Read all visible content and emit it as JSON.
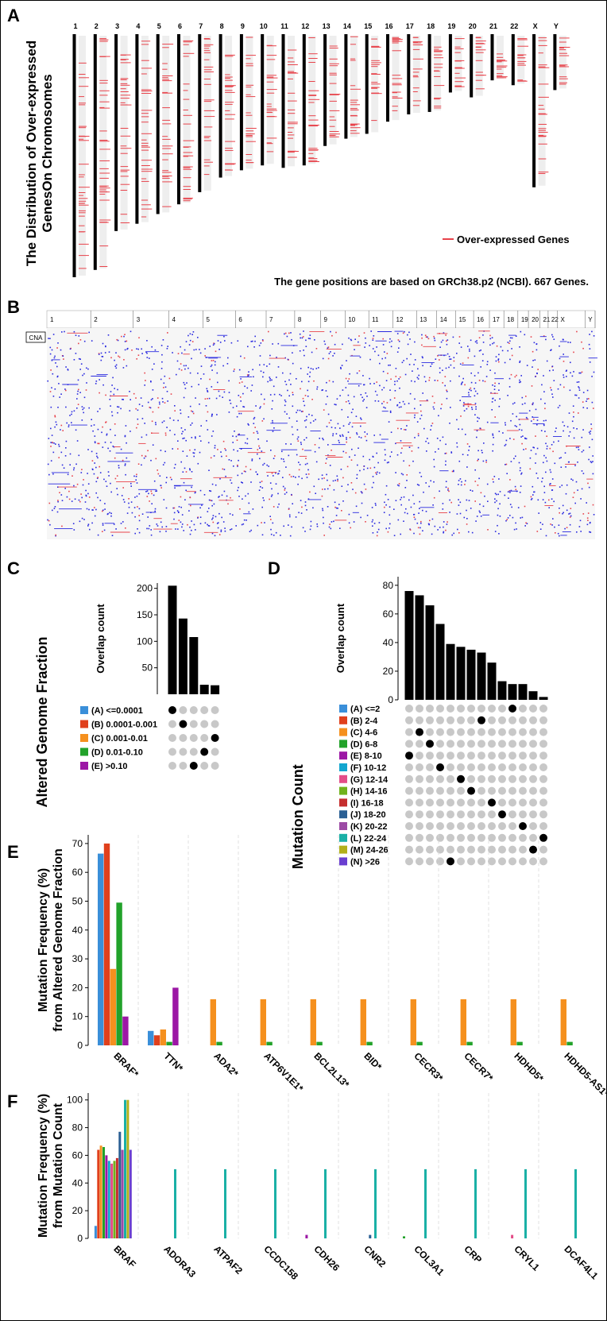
{
  "colors": {
    "red_mark": "#e8434b",
    "blue_mark": "#2a2ae0",
    "dot_grey": "#c8c8c8",
    "dot_black": "#000000",
    "grid": "#d9d9d9"
  },
  "panelA": {
    "letter": "A",
    "ylabel": "The Distribution of Over-expressed GenesOn Chromosomes",
    "ylabel_line1": "The Distribution of Over-expressed",
    "ylabel_line2": "GenesOn Chromosomes",
    "legend": "Over-expressed Genes",
    "note": "The gene positions are based on GRCh38.p2 (NCBI). 667 Genes.",
    "chromosomes": [
      "1",
      "2",
      "3",
      "4",
      "5",
      "6",
      "7",
      "8",
      "9",
      "10",
      "11",
      "12",
      "13",
      "14",
      "15",
      "16",
      "17",
      "18",
      "19",
      "20",
      "21",
      "22",
      "X",
      "Y"
    ],
    "relative_lengths": [
      1.0,
      0.97,
      0.81,
      0.78,
      0.74,
      0.7,
      0.65,
      0.59,
      0.56,
      0.54,
      0.55,
      0.54,
      0.46,
      0.43,
      0.41,
      0.36,
      0.33,
      0.32,
      0.24,
      0.26,
      0.19,
      0.21,
      0.63,
      0.23
    ]
  },
  "panelB": {
    "letter": "B",
    "tag": "CNA",
    "chromosomes": [
      "1",
      "2",
      "3",
      "4",
      "5",
      "6",
      "7",
      "8",
      "9",
      "10",
      "11",
      "12",
      "13",
      "14",
      "15",
      "16",
      "17",
      "18",
      "19",
      "20",
      "21",
      "22",
      "X",
      "Y"
    ]
  },
  "chart_data": [
    {
      "type": "bar",
      "panel": "C",
      "ylabel": "Overlap count",
      "side_label": "Altered Genome Fraction",
      "yticks": [
        50,
        100,
        150,
        200
      ],
      "ylim": [
        0,
        210
      ],
      "values": [
        205,
        143,
        108,
        18,
        17
      ],
      "sets": [
        {
          "label": "(A) <=0.0001",
          "color": "#3a8fd9"
        },
        {
          "label": "(B) 0.0001-0.001",
          "color": "#e0401c"
        },
        {
          "label": "(C) 0.001-0.01",
          "color": "#f5901e"
        },
        {
          "label": "(D) 0.01-0.10",
          "color": "#22a22a"
        },
        {
          "label": "(E) >0.10",
          "color": "#9c17a5"
        }
      ],
      "membership_set_index": [
        0,
        1,
        4,
        3,
        2
      ]
    },
    {
      "type": "bar",
      "panel": "D",
      "ylabel": "Overlap count",
      "side_label": "Mutation Count",
      "yticks": [
        0,
        20,
        40,
        60,
        80
      ],
      "ylim": [
        0,
        86
      ],
      "values": [
        76,
        73,
        66,
        53,
        39,
        37,
        35,
        33,
        26,
        13,
        11,
        11,
        6,
        2
      ],
      "sets": [
        {
          "label": "(A) <=2",
          "color": "#3a8fd9"
        },
        {
          "label": "(B) 2-4",
          "color": "#e0401c"
        },
        {
          "label": "(C) 4-6",
          "color": "#f5901e"
        },
        {
          "label": "(D) 6-8",
          "color": "#22a22a"
        },
        {
          "label": "(E) 8-10",
          "color": "#9c17a5"
        },
        {
          "label": "(F) 10-12",
          "color": "#13a6cf"
        },
        {
          "label": "(G) 12-14",
          "color": "#e34d88"
        },
        {
          "label": "(H) 14-16",
          "color": "#70b21c"
        },
        {
          "label": "(I) 16-18",
          "color": "#c52e2e"
        },
        {
          "label": "(J) 18-20",
          "color": "#2a5f94"
        },
        {
          "label": "(K) 20-22",
          "color": "#9c4aa5"
        },
        {
          "label": "(L) 22-24",
          "color": "#1ab0a6"
        },
        {
          "label": "(M) 24-26",
          "color": "#b2b01a"
        },
        {
          "label": "(N) >26",
          "color": "#6a3fd0"
        }
      ],
      "membership_set_index": [
        4,
        2,
        3,
        5,
        13,
        6,
        7,
        1,
        8,
        9,
        0,
        10,
        12,
        11
      ]
    },
    {
      "type": "bar",
      "panel": "E",
      "ylabel_line1": "Mutation Frequency (%)",
      "ylabel_line2": "from Altered Genome Fraction",
      "yticks": [
        0,
        10,
        20,
        30,
        40,
        50,
        60,
        70
      ],
      "ylim": [
        0,
        73
      ],
      "categories": [
        "BRAF*",
        "TTN*",
        "ADA2*",
        "ATP6V1E1*",
        "BCL2L13*",
        "BID*",
        "CECR3*",
        "CECR7*",
        "HDHD5*",
        "HDHD5-AS1*"
      ],
      "series": [
        {
          "color": "#3a8fd9",
          "values": [
            66.5,
            5,
            0,
            0,
            0,
            0,
            0,
            0,
            0,
            0
          ]
        },
        {
          "color": "#e0401c",
          "values": [
            70,
            3.5,
            0,
            0,
            0,
            0,
            0,
            0,
            0,
            0
          ]
        },
        {
          "color": "#f5901e",
          "values": [
            26.5,
            5.5,
            16,
            16,
            16,
            16,
            16,
            16,
            16,
            16
          ]
        },
        {
          "color": "#22a22a",
          "values": [
            49.5,
            1.2,
            1.2,
            1.2,
            1.2,
            1.2,
            1.2,
            1.2,
            1.2,
            1.2
          ]
        },
        {
          "color": "#9c17a5",
          "values": [
            10,
            20,
            0,
            0,
            0,
            0,
            0,
            0,
            0,
            0
          ]
        }
      ]
    },
    {
      "type": "bar",
      "panel": "F",
      "ylabel_line1": "Mutation Frequency (%)",
      "ylabel_line2": "from Mutation Count",
      "yticks": [
        0,
        20,
        40,
        60,
        80,
        100
      ],
      "ylim": [
        0,
        105
      ],
      "categories": [
        "BRAF",
        "ADORA3",
        "ATPAF2",
        "CCDC158",
        "CDH26",
        "CNR2",
        "COL3A1",
        "CRP",
        "CRYL1",
        "DCAF4L1"
      ],
      "series": [
        {
          "color": "#3a8fd9",
          "values": [
            9,
            0,
            0,
            0,
            0,
            0,
            0,
            0,
            0,
            0
          ]
        },
        {
          "color": "#e0401c",
          "values": [
            64,
            0,
            0,
            0,
            0,
            0,
            0,
            0,
            0,
            0
          ]
        },
        {
          "color": "#f5901e",
          "values": [
            67,
            0,
            0,
            0,
            0,
            0,
            0,
            0,
            0,
            0
          ]
        },
        {
          "color": "#22a22a",
          "values": [
            66,
            0,
            0,
            0,
            0,
            0,
            1.5,
            0,
            0,
            0
          ]
        },
        {
          "color": "#9c17a5",
          "values": [
            60,
            0,
            0,
            0,
            2.5,
            0,
            0,
            0,
            0,
            0
          ]
        },
        {
          "color": "#13a6cf",
          "values": [
            56,
            0,
            0,
            0,
            0,
            0,
            0,
            0,
            0,
            0
          ]
        },
        {
          "color": "#e34d88",
          "values": [
            54,
            0,
            0,
            0,
            0,
            0,
            0,
            0,
            2.5,
            0
          ]
        },
        {
          "color": "#70b21c",
          "values": [
            56,
            0,
            0,
            0,
            0,
            0,
            0,
            0,
            0,
            0
          ]
        },
        {
          "color": "#c52e2e",
          "values": [
            58,
            0,
            0,
            0,
            0,
            0,
            0,
            0,
            0,
            0
          ]
        },
        {
          "color": "#2a5f94",
          "values": [
            77,
            0,
            0,
            0,
            0,
            2.5,
            0,
            0,
            0,
            0
          ]
        },
        {
          "color": "#9c4aa5",
          "values": [
            64,
            0,
            0,
            0,
            0,
            0,
            0,
            0,
            0,
            0
          ]
        },
        {
          "color": "#1ab0a6",
          "values": [
            100,
            50,
            50,
            50,
            50,
            50,
            50,
            50,
            50,
            50
          ]
        },
        {
          "color": "#b2b01a",
          "values": [
            100,
            0,
            0,
            0,
            0,
            0,
            0,
            0,
            0,
            0
          ]
        },
        {
          "color": "#6a3fd0",
          "values": [
            64,
            0,
            0,
            0,
            0,
            0,
            0,
            0,
            0,
            0
          ]
        }
      ]
    }
  ],
  "panel_letters": {
    "C": "C",
    "D": "D",
    "E": "E",
    "F": "F"
  }
}
